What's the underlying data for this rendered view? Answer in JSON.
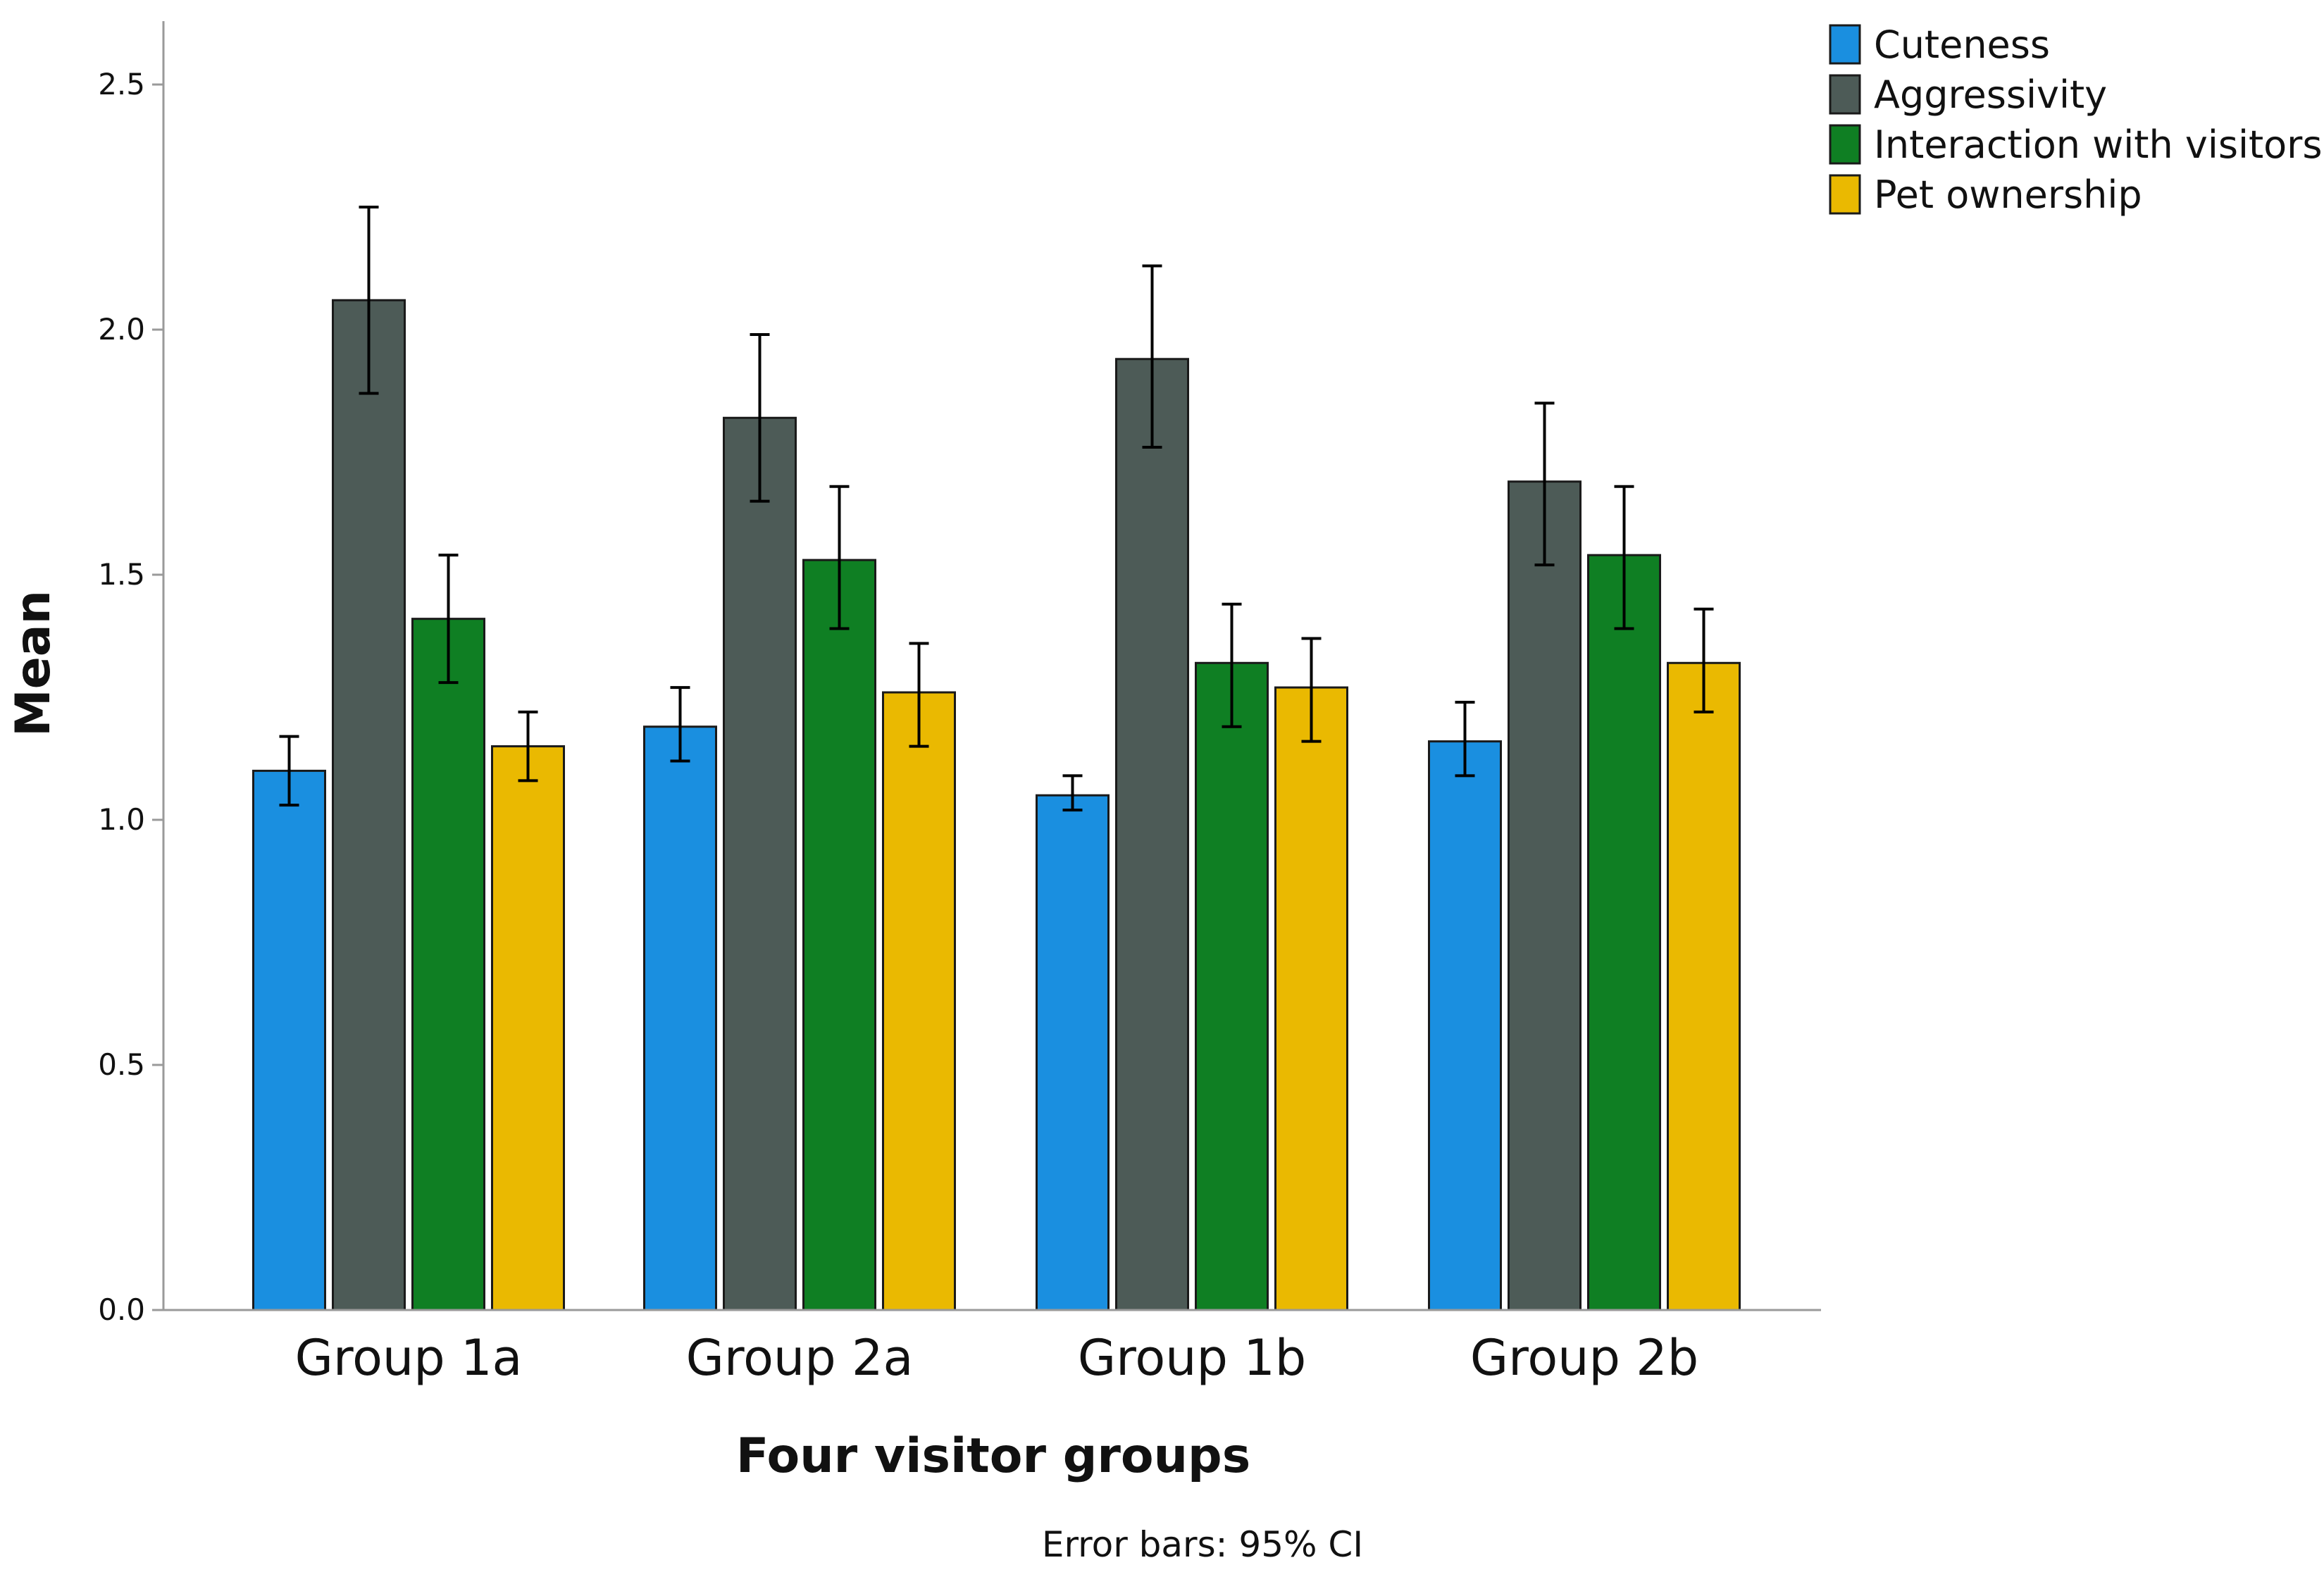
{
  "chart_data": {
    "type": "bar",
    "categories": [
      "Group 1a",
      "Group 2a",
      "Group 1b",
      "Group 2b"
    ],
    "series": [
      {
        "name": "Cuteness",
        "color": "#1a8fe0",
        "values": [
          1.1,
          1.19,
          1.05,
          1.16
        ],
        "ci_low": [
          1.03,
          1.12,
          1.02,
          1.09
        ],
        "ci_high": [
          1.17,
          1.27,
          1.09,
          1.24
        ]
      },
      {
        "name": "Aggressivity",
        "color": "#4d5b57",
        "values": [
          2.06,
          1.82,
          1.94,
          1.69
        ],
        "ci_low": [
          1.87,
          1.65,
          1.76,
          1.52
        ],
        "ci_high": [
          2.25,
          1.99,
          2.13,
          1.85
        ]
      },
      {
        "name": "Interaction with visitors",
        "color": "#0f7f23",
        "values": [
          1.41,
          1.53,
          1.32,
          1.54
        ],
        "ci_low": [
          1.28,
          1.39,
          1.19,
          1.39
        ],
        "ci_high": [
          1.54,
          1.68,
          1.44,
          1.68
        ]
      },
      {
        "name": "Pet ownership",
        "color": "#eab901",
        "values": [
          1.15,
          1.26,
          1.27,
          1.32
        ],
        "ci_low": [
          1.08,
          1.15,
          1.16,
          1.22
        ],
        "ci_high": [
          1.22,
          1.36,
          1.37,
          1.43
        ]
      }
    ],
    "ylim": [
      0,
      2.6
    ],
    "yticks": [
      "0.0",
      "0.5",
      "1.0",
      "1.5",
      "2.0",
      "2.5"
    ],
    "xlabel": "Four visitor groups",
    "ylabel": "Mean",
    "legend_position": "top-right",
    "grid": false,
    "note": "Error bars: 95% CI"
  }
}
